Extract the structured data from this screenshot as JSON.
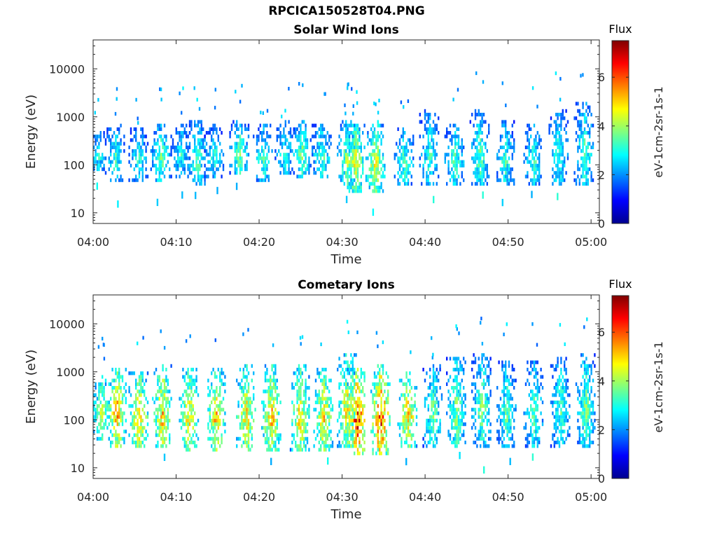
{
  "figure": {
    "title": "RPCICA150528T04.PNG"
  },
  "chart_data": [
    {
      "type": "heatmap",
      "title": "Solar Wind Ions",
      "xlabel": "Time",
      "ylabel": "Energy (eV)",
      "yscale": "log",
      "ylim": [
        6,
        40000
      ],
      "xlim_minutes": [
        0,
        61
      ],
      "xticks": [
        "04:00",
        "04:10",
        "04:20",
        "04:30",
        "04:40",
        "04:50",
        "05:00"
      ],
      "yticks": [
        "10",
        "100",
        "1000",
        "10000"
      ],
      "colorbar": {
        "title": "Flux",
        "label": "eV-1cm-2sr-1s-1",
        "range": [
          0,
          7.5
        ],
        "ticks": [
          "0",
          "2",
          "4",
          "6"
        ]
      },
      "bursts": [
        {
          "t": 0.5,
          "e_low": 80,
          "e_high": 500,
          "peak": 3.0
        },
        {
          "t": 2.5,
          "e_low": 50,
          "e_high": 700,
          "peak": 3.2
        },
        {
          "t": 5.5,
          "e_low": 50,
          "e_high": 600,
          "peak": 3.0
        },
        {
          "t": 8.0,
          "e_low": 50,
          "e_high": 700,
          "peak": 3.6
        },
        {
          "t": 10.5,
          "e_low": 60,
          "e_high": 700,
          "peak": 3.0
        },
        {
          "t": 12.5,
          "e_low": 40,
          "e_high": 800,
          "peak": 3.4
        },
        {
          "t": 14.5,
          "e_low": 60,
          "e_high": 700,
          "peak": 3.0
        },
        {
          "t": 17.5,
          "e_low": 60,
          "e_high": 800,
          "peak": 3.6
        },
        {
          "t": 20.5,
          "e_low": 50,
          "e_high": 700,
          "peak": 3.2
        },
        {
          "t": 23.0,
          "e_low": 60,
          "e_high": 800,
          "peak": 3.0
        },
        {
          "t": 25.0,
          "e_low": 60,
          "e_high": 900,
          "peak": 3.6
        },
        {
          "t": 27.5,
          "e_low": 60,
          "e_high": 700,
          "peak": 3.4
        },
        {
          "t": 30.5,
          "e_low": 40,
          "e_high": 900,
          "peak": 3.8
        },
        {
          "t": 31.5,
          "e_low": 30,
          "e_high": 700,
          "peak": 4.6
        },
        {
          "t": 34.0,
          "e_low": 30,
          "e_high": 900,
          "peak": 4.4
        },
        {
          "t": 37.5,
          "e_low": 40,
          "e_high": 600,
          "peak": 3.4
        },
        {
          "t": 40.5,
          "e_low": 40,
          "e_high": 1500,
          "peak": 3.2
        },
        {
          "t": 43.5,
          "e_low": 40,
          "e_high": 700,
          "peak": 3.4
        },
        {
          "t": 46.5,
          "e_low": 40,
          "e_high": 1500,
          "peak": 3.4
        },
        {
          "t": 49.5,
          "e_low": 40,
          "e_high": 900,
          "peak": 3.2
        },
        {
          "t": 53.0,
          "e_low": 40,
          "e_high": 700,
          "peak": 3.2
        },
        {
          "t": 56.0,
          "e_low": 40,
          "e_high": 1500,
          "peak": 3.2
        },
        {
          "t": 59.0,
          "e_low": 40,
          "e_high": 2000,
          "peak": 3.4
        }
      ]
    },
    {
      "type": "heatmap",
      "title": "Cometary Ions",
      "xlabel": "Time",
      "ylabel": "Energy (eV)",
      "yscale": "log",
      "ylim": [
        6,
        40000
      ],
      "xlim_minutes": [
        0,
        61
      ],
      "xticks": [
        "04:00",
        "04:10",
        "04:20",
        "04:30",
        "04:40",
        "04:50",
        "05:00"
      ],
      "yticks": [
        "10",
        "100",
        "1000",
        "10000"
      ],
      "colorbar": {
        "title": "Flux",
        "label": "eV-1cm-2sr-1s-1",
        "range": [
          0,
          7.5
        ],
        "ticks": [
          "0",
          "2",
          "4",
          "6"
        ]
      },
      "bursts": [
        {
          "t": 1.0,
          "e_low": 40,
          "e_high": 900,
          "peak": 4.2
        },
        {
          "t": 2.8,
          "e_low": 30,
          "e_high": 1200,
          "peak": 5.2
        },
        {
          "t": 5.5,
          "e_low": 30,
          "e_high": 1000,
          "peak": 5.0
        },
        {
          "t": 8.3,
          "e_low": 30,
          "e_high": 1500,
          "peak": 5.0
        },
        {
          "t": 11.5,
          "e_low": 25,
          "e_high": 1200,
          "peak": 4.8
        },
        {
          "t": 14.8,
          "e_low": 25,
          "e_high": 1200,
          "peak": 5.0
        },
        {
          "t": 18.3,
          "e_low": 25,
          "e_high": 1500,
          "peak": 4.8
        },
        {
          "t": 21.5,
          "e_low": 25,
          "e_high": 1500,
          "peak": 5.0
        },
        {
          "t": 24.8,
          "e_low": 25,
          "e_high": 1500,
          "peak": 4.8
        },
        {
          "t": 27.8,
          "e_low": 25,
          "e_high": 1200,
          "peak": 4.8
        },
        {
          "t": 30.5,
          "e_low": 30,
          "e_high": 2500,
          "peak": 4.8
        },
        {
          "t": 31.8,
          "e_low": 20,
          "e_high": 1200,
          "peak": 6.2
        },
        {
          "t": 34.5,
          "e_low": 20,
          "e_high": 1500,
          "peak": 6.0
        },
        {
          "t": 37.8,
          "e_low": 30,
          "e_high": 1000,
          "peak": 5.0
        },
        {
          "t": 40.8,
          "e_low": 30,
          "e_high": 1500,
          "peak": 3.6
        },
        {
          "t": 43.8,
          "e_low": 30,
          "e_high": 2000,
          "peak": 3.8
        },
        {
          "t": 46.8,
          "e_low": 30,
          "e_high": 2500,
          "peak": 3.6
        },
        {
          "t": 49.8,
          "e_low": 30,
          "e_high": 1800,
          "peak": 3.4
        },
        {
          "t": 53.0,
          "e_low": 30,
          "e_high": 1800,
          "peak": 3.4
        },
        {
          "t": 56.3,
          "e_low": 30,
          "e_high": 2000,
          "peak": 3.4
        },
        {
          "t": 59.3,
          "e_low": 30,
          "e_high": 2500,
          "peak": 3.6
        }
      ]
    }
  ]
}
